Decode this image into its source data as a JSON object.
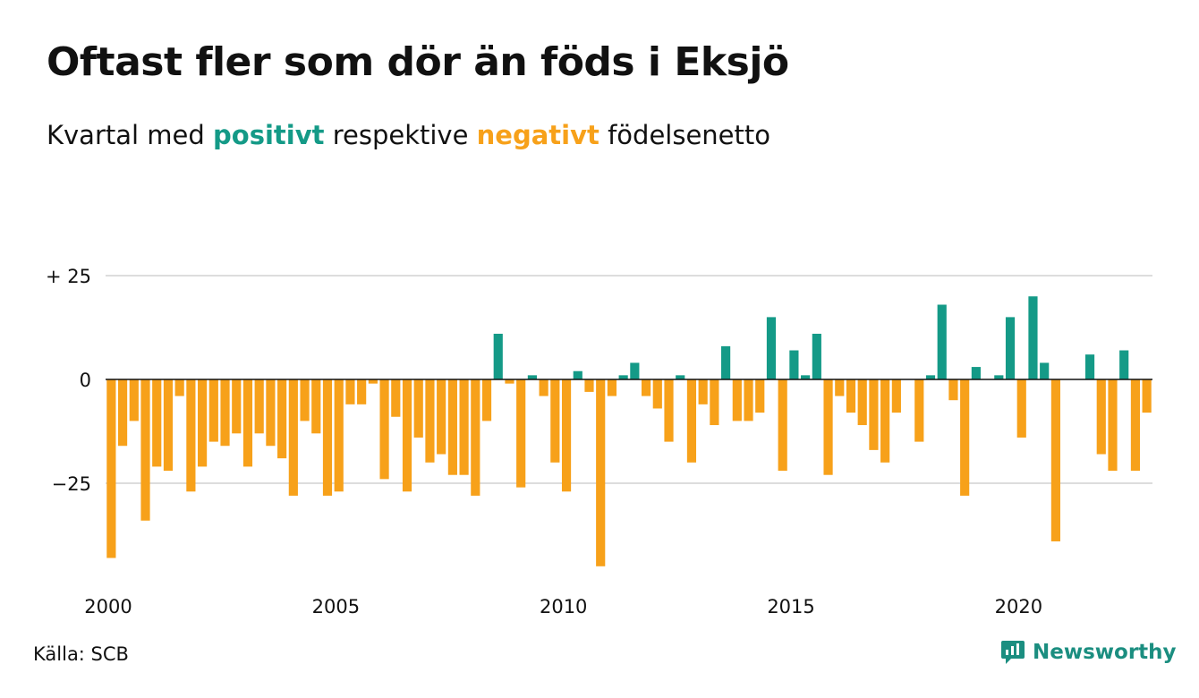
{
  "header": {
    "title": "Oftast fler som dör än föds i Eksjö",
    "subtitle_prefix": "Kvartal med ",
    "subtitle_positive": "positivt",
    "subtitle_middle": " respektive ",
    "subtitle_negative": "negativt",
    "subtitle_suffix": " födelsenetto"
  },
  "footer": {
    "source": "Källa: SCB",
    "brand": "Newsworthy"
  },
  "colors": {
    "positive": "#149a87",
    "negative": "#f7a11a",
    "grid": "#dddddd",
    "axis": "#111111",
    "brand": "#1b8e80"
  },
  "chart_data": {
    "type": "bar",
    "grid": true,
    "ylim": [
      -46,
      25
    ],
    "yticks": [
      {
        "value": 25,
        "label": "+ 25"
      },
      {
        "value": 0,
        "label": "0"
      },
      {
        "value": -25,
        "label": "−25"
      }
    ],
    "xticks": [
      {
        "value": 2000,
        "label": "2000"
      },
      {
        "value": 2005,
        "label": "2005"
      },
      {
        "value": 2010,
        "label": "2010"
      },
      {
        "value": 2015,
        "label": "2015"
      },
      {
        "value": 2020,
        "label": "2020"
      }
    ],
    "start_year": 2000,
    "periods_per_year": 4,
    "values": [
      -43,
      -16,
      -10,
      -34,
      -21,
      -22,
      -4,
      -27,
      -21,
      -15,
      -16,
      -13,
      -21,
      -13,
      -16,
      -19,
      -28,
      -10,
      -13,
      -28,
      -27,
      -6,
      -6,
      -1,
      -24,
      -9,
      -27,
      -14,
      -20,
      -18,
      -23,
      -23,
      -28,
      -10,
      11,
      -1,
      -26,
      1,
      -4,
      -20,
      -27,
      2,
      -3,
      -45,
      -4,
      1,
      4,
      -4,
      -7,
      -15,
      1,
      -20,
      -6,
      -11,
      8,
      -10,
      -10,
      -8,
      15,
      -22,
      7,
      1,
      11,
      -23,
      -4,
      -8,
      -11,
      -17,
      -20,
      -8,
      0,
      -15,
      1,
      18,
      -5,
      -28,
      3,
      0,
      1,
      15,
      -14,
      20,
      4,
      -39,
      0,
      0,
      6,
      -18,
      -22,
      7,
      -22,
      -8
    ]
  }
}
